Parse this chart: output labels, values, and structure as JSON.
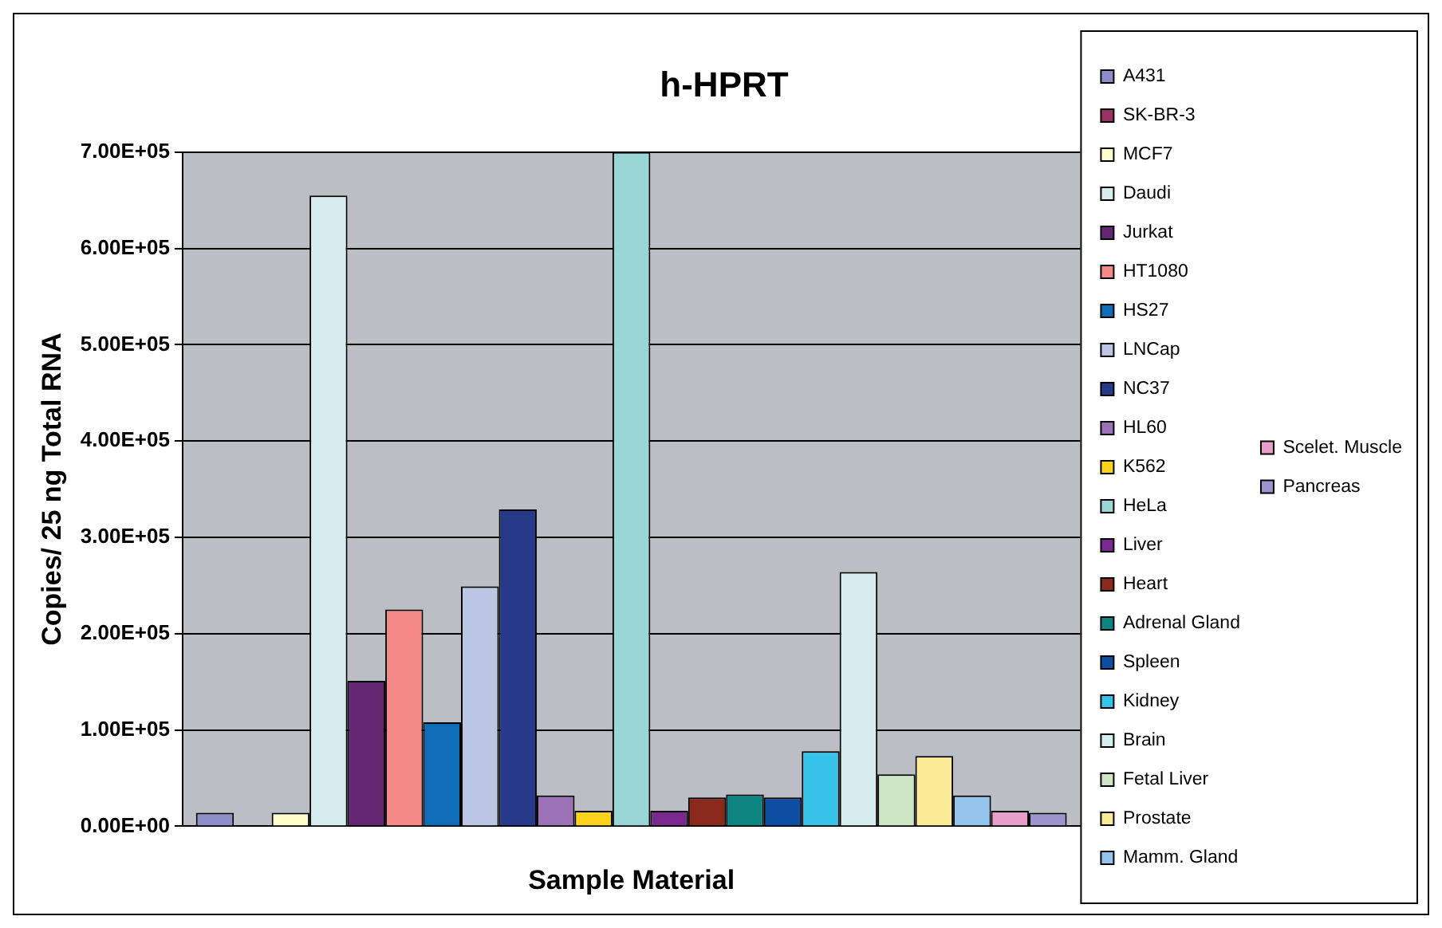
{
  "chart_data": {
    "type": "bar",
    "title": "h-HPRT",
    "xlabel": "Sample Material",
    "ylabel": "Copies/ 25 ng Total RNA",
    "categories": [
      null
    ],
    "series": [
      {
        "name": "A431",
        "color": "#8e8fc8",
        "values": [
          14000
        ]
      },
      {
        "name": "SK-BR-3",
        "color": "#993366",
        "values": [
          0
        ]
      },
      {
        "name": "MCF7",
        "color": "#ffffcc",
        "values": [
          14000
        ]
      },
      {
        "name": "Daudi",
        "color": "#d6ecee",
        "values": [
          655000
        ]
      },
      {
        "name": "Jurkat",
        "color": "#642873",
        "values": [
          151000
        ]
      },
      {
        "name": "HT1080",
        "color": "#f48988",
        "values": [
          225000
        ]
      },
      {
        "name": "HS27",
        "color": "#106eb8",
        "values": [
          108000
        ]
      },
      {
        "name": "LNCap",
        "color": "#bcc6e4",
        "values": [
          249000
        ]
      },
      {
        "name": "NC37",
        "color": "#273a8a",
        "values": [
          329000
        ]
      },
      {
        "name": "HL60",
        "color": "#9b72b6",
        "values": [
          32000
        ]
      },
      {
        "name": "K562",
        "color": "#fcd21c",
        "values": [
          16000
        ]
      },
      {
        "name": "HeLa",
        "color": "#9bd6d6",
        "values": [
          700000
        ]
      },
      {
        "name": "Liver",
        "color": "#7a2a8e",
        "values": [
          16000
        ]
      },
      {
        "name": "Heart",
        "color": "#8a2a1c",
        "values": [
          30000
        ]
      },
      {
        "name": "Adrenal Gland",
        "color": "#0f8582",
        "values": [
          33000
        ]
      },
      {
        "name": "Spleen",
        "color": "#0e4ea2",
        "values": [
          30000
        ]
      },
      {
        "name": "Kidney",
        "color": "#37c3e7",
        "values": [
          78000
        ]
      },
      {
        "name": "Brain",
        "color": "#d6ecee",
        "values": [
          264000
        ]
      },
      {
        "name": "Fetal Liver",
        "color": "#cee6c6",
        "values": [
          54000
        ]
      },
      {
        "name": "Prostate",
        "color": "#fbeb97",
        "values": [
          73000
        ]
      },
      {
        "name": "Mamm. Gland",
        "color": "#92c4ec",
        "values": [
          32000
        ]
      },
      {
        "name": "Scelet. Muscle",
        "color": "#e79ec8",
        "values": [
          16000
        ]
      },
      {
        "name": "Pancreas",
        "color": "#9e94cc",
        "values": [
          14000
        ]
      }
    ],
    "ylim": [
      0,
      700000
    ],
    "yticks": [
      {
        "value": 0,
        "label": "0.00E+00"
      },
      {
        "value": 100000,
        "label": "1.00E+05"
      },
      {
        "value": 200000,
        "label": "2.00E+05"
      },
      {
        "value": 300000,
        "label": "3.00E+05"
      },
      {
        "value": 400000,
        "label": "4.00E+05"
      },
      {
        "value": 500000,
        "label": "5.00E+05"
      },
      {
        "value": 600000,
        "label": "6.00E+05"
      },
      {
        "value": 700000,
        "label": "7.00E+05"
      }
    ],
    "grid": "y",
    "legend": "right"
  }
}
